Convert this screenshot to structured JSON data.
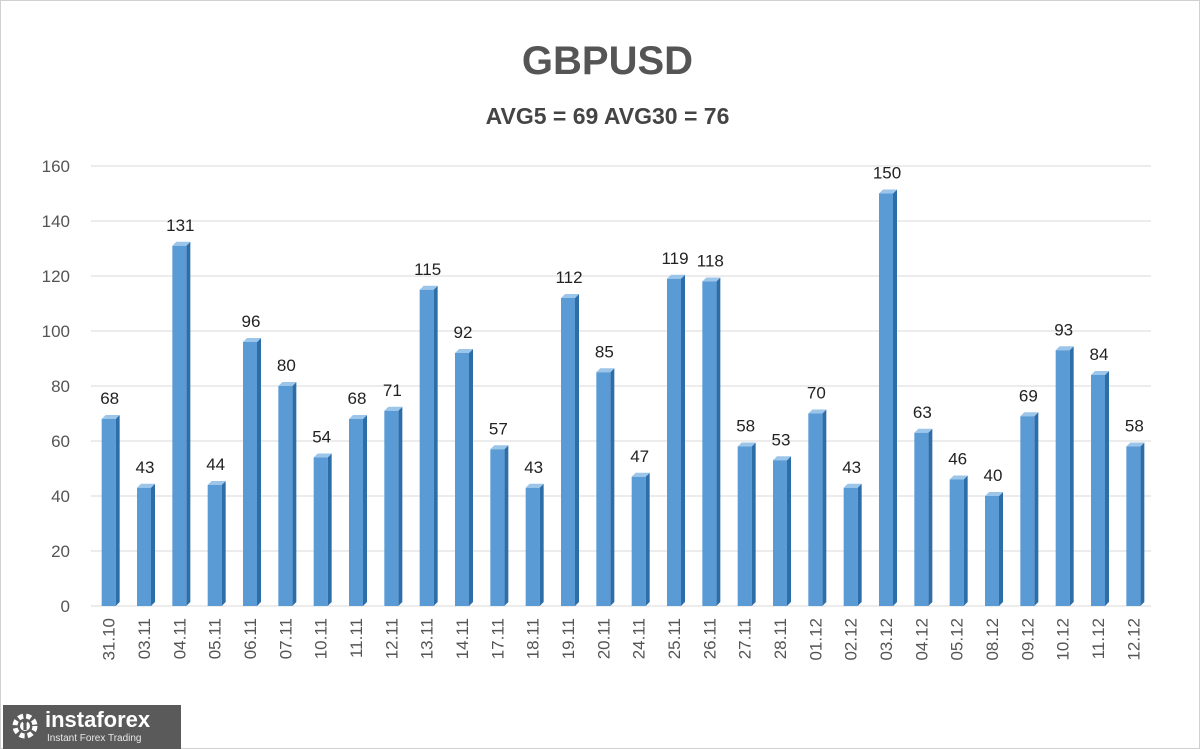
{
  "chart_data": {
    "type": "bar",
    "title": "GBPUSD",
    "subtitle": "AVG5 = 69 AVG30 = 76",
    "categories": [
      "31.10",
      "03.11",
      "04.11",
      "05.11",
      "06.11",
      "07.11",
      "10.11",
      "11.11",
      "12.11",
      "13.11",
      "14.11",
      "17.11",
      "18.11",
      "19.11",
      "20.11",
      "24.11",
      "25.11",
      "26.11",
      "27.11",
      "28.11",
      "01.12",
      "02.12",
      "03.12",
      "04.12",
      "05.12",
      "08.12",
      "09.12",
      "10.12",
      "11.12",
      "12.12"
    ],
    "values": [
      68,
      43,
      131,
      44,
      96,
      80,
      54,
      68,
      71,
      115,
      92,
      57,
      43,
      112,
      85,
      47,
      119,
      118,
      58,
      53,
      70,
      43,
      150,
      63,
      46,
      40,
      69,
      93,
      84,
      58
    ],
    "ylim": [
      0,
      160
    ],
    "yticks": [
      0,
      20,
      40,
      60,
      80,
      100,
      120,
      140,
      160
    ],
    "grid": true,
    "bar_color": "#5b9bd5",
    "bar_side_color": "#2e6ea8",
    "bar_top_color": "#9cc5ea"
  },
  "watermark": {
    "name": "instaforex",
    "tagline": "Instant Forex Trading"
  }
}
